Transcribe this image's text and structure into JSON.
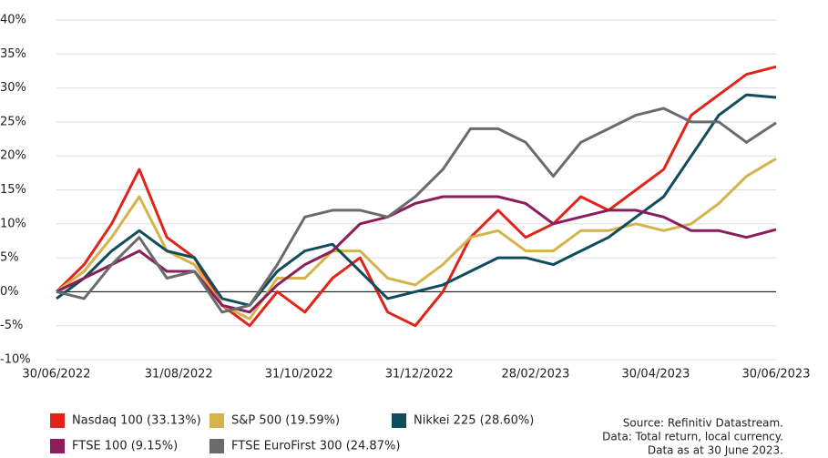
{
  "chart_data": {
    "type": "line",
    "x": [
      "30/06/2022",
      "14/07/2022",
      "28/07/2022",
      "11/08/2022",
      "25/08/2022",
      "08/09/2022",
      "22/09/2022",
      "06/10/2022",
      "20/10/2022",
      "03/11/2022",
      "17/11/2022",
      "01/12/2022",
      "15/12/2022",
      "29/12/2022",
      "12/01/2023",
      "26/01/2023",
      "09/02/2023",
      "23/02/2023",
      "09/03/2023",
      "23/03/2023",
      "06/04/2023",
      "20/04/2023",
      "04/05/2023",
      "18/05/2023",
      "01/06/2023",
      "15/06/2023",
      "30/06/2023"
    ],
    "series": [
      {
        "name": "Nasdaq 100 (33.13%)",
        "color": "#e2231a",
        "values": [
          0,
          4,
          10,
          18,
          8,
          5,
          -2,
          -5,
          0,
          -3,
          2,
          5,
          -3,
          -5,
          0,
          8,
          12,
          8,
          10,
          14,
          12,
          15,
          18,
          26,
          29,
          32,
          33.13
        ]
      },
      {
        "name": "S&P 500 (19.59%)",
        "color": "#d4b44a",
        "values": [
          0,
          3,
          8,
          14,
          6,
          4,
          -2,
          -4,
          2,
          2,
          6,
          6,
          2,
          1,
          4,
          8,
          9,
          6,
          6,
          9,
          9,
          10,
          9,
          10,
          13,
          17,
          19.59
        ]
      },
      {
        "name": "Nikkei 225 (28.60%)",
        "color": "#0f4c5c",
        "values": [
          -1,
          2,
          6,
          9,
          6,
          5,
          -1,
          -2,
          3,
          6,
          7,
          3,
          -1,
          0,
          1,
          3,
          5,
          5,
          4,
          6,
          8,
          11,
          14,
          20,
          26,
          29,
          28.6
        ]
      },
      {
        "name": "FTSE 100 (9.15%)",
        "color": "#8b1d5c",
        "values": [
          0,
          2,
          4,
          6,
          3,
          3,
          -2,
          -3,
          1,
          4,
          6,
          10,
          11,
          13,
          14,
          14,
          14,
          13,
          10,
          11,
          12,
          12,
          11,
          9,
          9,
          8,
          9.15
        ]
      },
      {
        "name": "FTSE EuroFirst 300 (24.87%)",
        "color": "#6b6b6b",
        "values": [
          0,
          -1,
          4,
          8,
          2,
          3,
          -3,
          -2,
          4,
          11,
          12,
          12,
          11,
          14,
          18,
          24,
          24,
          22,
          17,
          22,
          24,
          26,
          27,
          25,
          25,
          22,
          24.87
        ]
      }
    ],
    "xlim": [
      "30/06/2022",
      "30/06/2023"
    ],
    "xticks": [
      "30/06/2022",
      "31/08/2022",
      "31/10/2022",
      "31/12/2022",
      "28/02/2023",
      "30/04/2023",
      "30/06/2023"
    ],
    "ylim": [
      -10,
      40
    ],
    "yticks": [
      {
        "value": -10,
        "label": "-10%"
      },
      {
        "value": -5,
        "label": "-5%"
      },
      {
        "value": 0,
        "label": "0%"
      },
      {
        "value": 5,
        "label": "5%"
      },
      {
        "value": 10,
        "label": "10%"
      },
      {
        "value": 15,
        "label": "15%"
      },
      {
        "value": 20,
        "label": "20%"
      },
      {
        "value": 25,
        "label": "25%"
      },
      {
        "value": 30,
        "label": "30%"
      },
      {
        "value": 35,
        "label": "35%"
      },
      {
        "value": 40,
        "label": "40%"
      }
    ],
    "grid": true,
    "source": [
      "Source: Refinitiv Datastream.",
      "Data: Total return, local currency.",
      "Data as at 30 June 2023."
    ]
  }
}
